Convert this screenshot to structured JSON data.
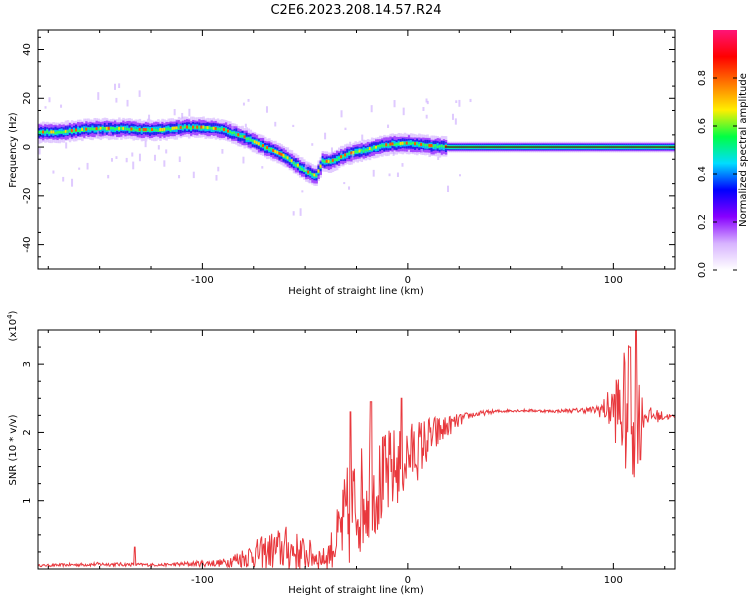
{
  "title": "C2E6.2023.208.14.57.R24",
  "chart_data": [
    {
      "type": "heatmap",
      "xlabel": "Height of straight line (km)",
      "ylabel": "Frequency (Hz)",
      "xlim": [
        -180,
        130
      ],
      "ylim": [
        -50,
        48
      ],
      "xticks": [
        -100,
        0,
        100
      ],
      "yticks": [
        -40,
        -20,
        0,
        20,
        40
      ],
      "colorbar": {
        "label": "Normalized spectral amplitude",
        "range": [
          0,
          1
        ],
        "ticks": [
          "0.0",
          "0.2",
          "0.4",
          "0.6",
          "0.8"
        ],
        "tick_values": [
          0,
          0.2,
          0.4,
          0.6,
          0.8
        ],
        "colors": [
          "#ffffff",
          "#d7b3ff",
          "#8800ff",
          "#0000ff",
          "#00ddff",
          "#00ff44",
          "#ffee00",
          "#ff7700",
          "#ff0000",
          "#ff1477"
        ]
      },
      "trace": {
        "x": [
          -180,
          -170,
          -160,
          -150,
          -140,
          -130,
          -120,
          -110,
          -100,
          -90,
          -80,
          -70,
          -60,
          -50,
          -45,
          -42,
          -38,
          -30,
          -20,
          -10,
          0,
          10,
          20,
          130
        ],
        "y": [
          6,
          6,
          7,
          7.5,
          7.5,
          7,
          7,
          8,
          8,
          7,
          4,
          0,
          -4,
          -10,
          -12,
          -6,
          -6,
          -3,
          -1,
          1,
          1.5,
          0.5,
          0,
          0
        ]
      }
    },
    {
      "type": "line",
      "xlabel": "Height of straight line (km)",
      "ylabel": "SNR (10 * v/v)",
      "multiplier": "(x10",
      "multiplier_exp": "4",
      "multiplier_close": ")",
      "xlim": [
        -180,
        130
      ],
      "ylim": [
        0,
        35000
      ],
      "xticks": [
        -100,
        0,
        100
      ],
      "yticks": [
        10000,
        20000,
        30000
      ],
      "ytick_labels": [
        "1",
        "2",
        "3"
      ],
      "color": "#e8383d",
      "baseline": {
        "x": [
          -180,
          -150,
          -120,
          -90,
          -70,
          -60,
          -50,
          -40,
          -35,
          -30,
          -25,
          -20,
          -15,
          -10,
          -5,
          0,
          5,
          10,
          20,
          30,
          40,
          50,
          60,
          70,
          80,
          90,
          95,
          100,
          105,
          110,
          115,
          130
        ],
        "y": [
          500,
          700,
          600,
          900,
          2500,
          3000,
          2200,
          1500,
          4000,
          7000,
          9500,
          11000,
          12000,
          13500,
          15000,
          16500,
          17500,
          19000,
          21000,
          22500,
          23000,
          23200,
          23200,
          23100,
          23200,
          23300,
          23400,
          23500,
          23000,
          22800,
          22500,
          22300
        ]
      },
      "noise": {
        "x": [
          -180,
          -150,
          -120,
          -90,
          -70,
          -60,
          -50,
          -40,
          -35,
          -30,
          -25,
          -20,
          -15,
          -10,
          -5,
          0,
          5,
          10,
          20,
          30,
          40,
          50,
          60,
          70,
          80,
          90,
          95,
          100,
          105,
          110,
          115,
          130
        ],
        "amp": [
          150,
          300,
          200,
          600,
          2500,
          3500,
          2500,
          1500,
          4000,
          8000,
          8000,
          8000,
          7000,
          7000,
          6000,
          5000,
          4500,
          3500,
          1500,
          500,
          300,
          200,
          200,
          200,
          300,
          500,
          1500,
          4000,
          9000,
          11000,
          1500,
          200
        ]
      },
      "peaks": [
        {
          "x": -133,
          "y": 3200
        },
        {
          "x": -28,
          "y": 23000
        },
        {
          "x": -18,
          "y": 24500
        },
        {
          "x": -3,
          "y": 25000
        },
        {
          "x": 108,
          "y": 32500
        },
        {
          "x": 111,
          "y": 35500
        },
        {
          "x": 113,
          "y": 16000
        }
      ]
    }
  ]
}
